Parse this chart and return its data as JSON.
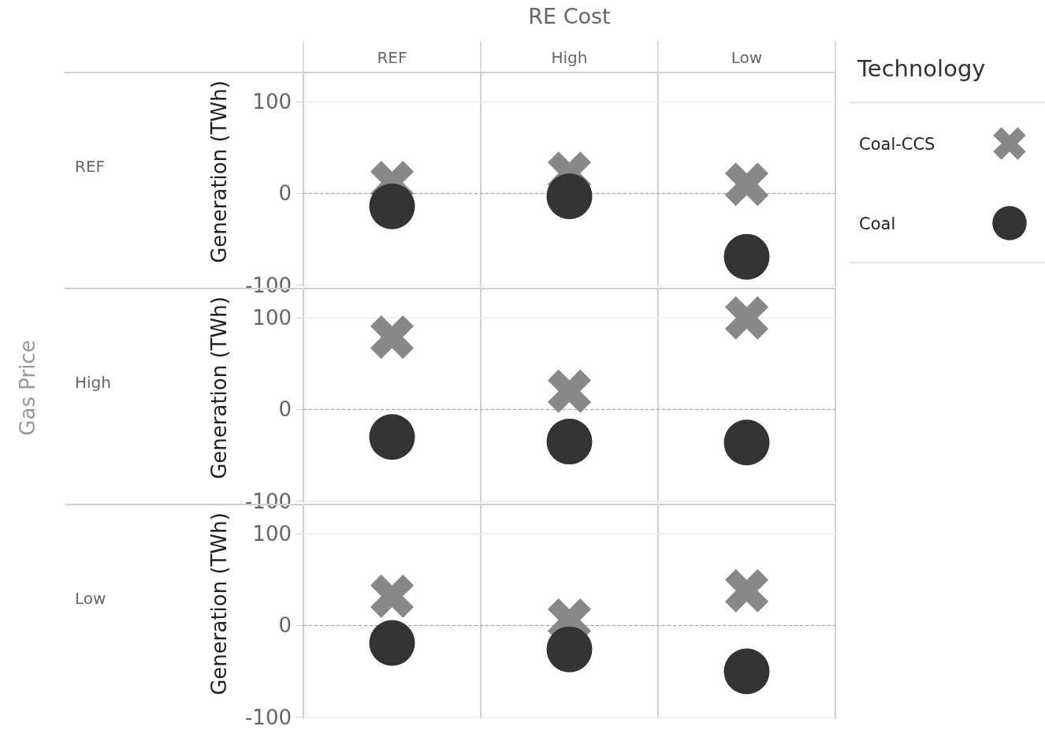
{
  "chart_data": [
    {
      "type": "scatter",
      "annotations": [
        "REF"
      ],
      "xlabel": "RE Cost",
      "ylabel": "Generation (TWh)",
      "legend_title": "Technology",
      "legend": "right",
      "categories": [
        "REF",
        "High",
        "Low"
      ],
      "ylim": [
        -102,
        132
      ],
      "yticks": [
        -100,
        0,
        100
      ],
      "grid": "y",
      "ref_lines": [
        {
          "axis": "y",
          "value": 0,
          "line_style": "dashed"
        }
      ],
      "series": [
        {
          "name": "Coal-CCS",
          "color": "#888888",
          "marker": "cross",
          "values": [
            12,
            22,
            10
          ]
        },
        {
          "name": "Coal",
          "color": "#333333",
          "marker": "circle",
          "values": [
            -14,
            -3,
            -69
          ]
        }
      ]
    },
    {
      "type": "scatter",
      "annotations": [
        "High",
        "Gas Price"
      ],
      "ylabel": "Generation (TWh)",
      "tick_labels": "y",
      "categories": [
        null,
        null,
        null
      ],
      "ylim": [
        -102,
        132
      ],
      "yticks": [
        -100,
        0,
        100
      ],
      "grid": "y",
      "ref_lines": [
        {
          "axis": "y",
          "value": 0,
          "line_style": "dashed"
        }
      ],
      "series": [
        {
          "color": "#888888",
          "marker": "cross",
          "values": [
            79,
            20,
            100
          ]
        },
        {
          "color": "#333333",
          "marker": "circle",
          "values": [
            -30,
            -35,
            -36
          ]
        }
      ]
    },
    {
      "type": "scatter",
      "annotations": [
        "Low"
      ],
      "ylabel": "Generation (TWh)",
      "tick_labels": "y",
      "categories": [
        null,
        null,
        null
      ],
      "ylim": [
        -102,
        132
      ],
      "yticks": [
        -100,
        0,
        100
      ],
      "grid": "y",
      "ref_lines": [
        {
          "axis": "y",
          "value": 0,
          "line_style": "dashed"
        }
      ],
      "series": [
        {
          "color": "#888888",
          "marker": "cross",
          "values": [
            32,
            6,
            38
          ]
        },
        {
          "color": "#333333",
          "marker": "circle",
          "values": [
            -19,
            -26,
            -50
          ]
        }
      ]
    }
  ]
}
